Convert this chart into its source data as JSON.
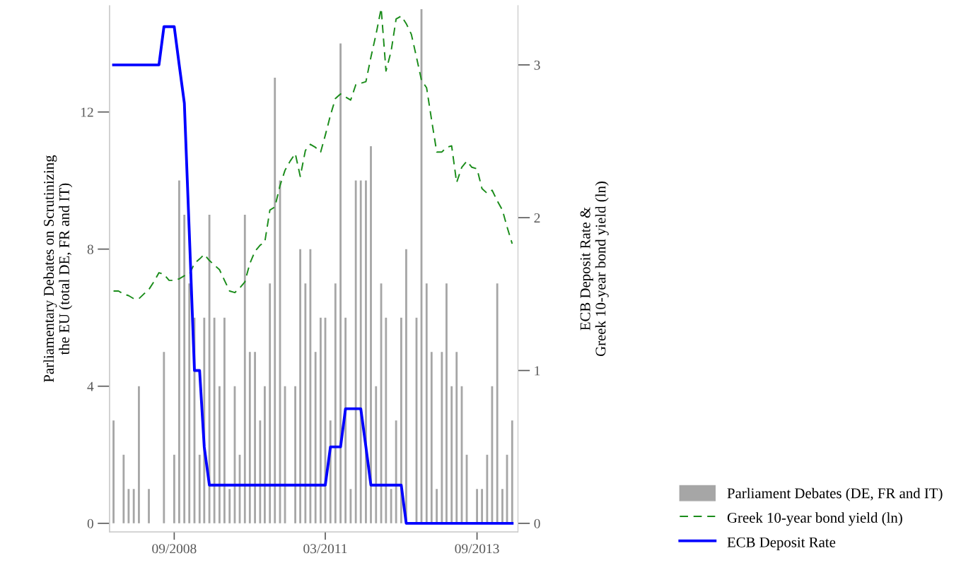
{
  "chart_data": {
    "type": "bar",
    "ylabel": "Parliamentary Debates on Scrutinizing\nthe EU (total DE, FR and IT)",
    "y2label": "ECB Deposit Rate &\nGreek 10-year bond yield (ln)",
    "x": [
      "2007-09",
      "2007-10",
      "2007-11",
      "2007-12",
      "2008-01",
      "2008-02",
      "2008-03",
      "2008-04",
      "2008-05",
      "2008-06",
      "2008-07",
      "2008-08",
      "2008-09",
      "2008-10",
      "2008-11",
      "2008-12",
      "2009-01",
      "2009-02",
      "2009-03",
      "2009-04",
      "2009-05",
      "2009-06",
      "2009-07",
      "2009-08",
      "2009-09",
      "2009-10",
      "2009-11",
      "2009-12",
      "2010-01",
      "2010-02",
      "2010-03",
      "2010-04",
      "2010-05",
      "2010-06",
      "2010-07",
      "2010-08",
      "2010-09",
      "2010-10",
      "2010-11",
      "2010-12",
      "2011-01",
      "2011-02",
      "2011-03",
      "2011-04",
      "2011-05",
      "2011-06",
      "2011-07",
      "2011-08",
      "2011-09",
      "2011-10",
      "2011-11",
      "2011-12",
      "2012-01",
      "2012-02",
      "2012-03",
      "2012-04",
      "2012-05",
      "2012-06",
      "2012-07",
      "2012-08",
      "2012-09",
      "2012-10",
      "2012-11",
      "2012-12",
      "2013-01",
      "2013-02",
      "2013-03",
      "2013-04",
      "2013-05",
      "2013-06",
      "2013-07",
      "2013-08",
      "2013-09",
      "2013-10",
      "2013-11",
      "2013-12",
      "2014-01",
      "2014-02",
      "2014-03",
      "2014-04"
    ],
    "series": [
      {
        "name": "Parliament Debates (DE, FR and IT)",
        "color": "#a6a6a6",
        "values": [
          3,
          0,
          2,
          1,
          1,
          4,
          0,
          1,
          0,
          0,
          5,
          0,
          2,
          10,
          9,
          7,
          6,
          2,
          6,
          9,
          6,
          4,
          6,
          1,
          4,
          2,
          9,
          5,
          5,
          3,
          4,
          7,
          13,
          10,
          4,
          0,
          4,
          8,
          7,
          8,
          5,
          6,
          6,
          3,
          7,
          14,
          6,
          1,
          10,
          10,
          10,
          11,
          4,
          7,
          6,
          1,
          3,
          6,
          8,
          0,
          6,
          15,
          7,
          5,
          1,
          5,
          7,
          4,
          5,
          4,
          2,
          0,
          1,
          1,
          2,
          4,
          7,
          1,
          2,
          3
        ]
      },
      {
        "name": "Greek 10-year bond yield (ln)",
        "type": "line",
        "axis": "y2",
        "line_style": "dashed",
        "color": "#1a8c1a",
        "values": [
          1.52,
          1.52,
          1.5,
          1.49,
          1.47,
          1.47,
          1.5,
          1.53,
          1.58,
          1.64,
          1.63,
          1.59,
          1.59,
          1.6,
          1.62,
          1.63,
          1.7,
          1.73,
          1.76,
          1.72,
          1.69,
          1.66,
          1.59,
          1.52,
          1.51,
          1.54,
          1.58,
          1.7,
          1.78,
          1.82,
          1.84,
          2.05,
          2.07,
          2.21,
          2.31,
          2.37,
          2.42,
          2.27,
          2.44,
          2.48,
          2.46,
          2.43,
          2.54,
          2.67,
          2.78,
          2.81,
          2.79,
          2.77,
          2.87,
          2.88,
          2.89,
          3.05,
          3.2,
          3.37,
          2.96,
          3.09,
          3.3,
          3.32,
          3.27,
          3.2,
          3.05,
          2.9,
          2.85,
          2.64,
          2.43,
          2.43,
          2.46,
          2.47,
          2.23,
          2.33,
          2.37,
          2.33,
          2.32,
          2.19,
          2.16,
          2.18,
          2.11,
          2.05,
          1.94,
          1.83
        ]
      },
      {
        "name": "ECB Deposit Rate",
        "type": "line",
        "axis": "y2",
        "line_style": "solid",
        "color": "#0000ff",
        "values": [
          3,
          3,
          3,
          3,
          3,
          3,
          3,
          3,
          3,
          3,
          3.25,
          3.25,
          3.25,
          3,
          2.75,
          1.9,
          1,
          1,
          0.5,
          0.25,
          0.25,
          0.25,
          0.25,
          0.25,
          0.25,
          0.25,
          0.25,
          0.25,
          0.25,
          0.25,
          0.25,
          0.25,
          0.25,
          0.25,
          0.25,
          0.25,
          0.25,
          0.25,
          0.25,
          0.25,
          0.25,
          0.25,
          0.25,
          0.5,
          0.5,
          0.5,
          0.75,
          0.75,
          0.75,
          0.75,
          0.5,
          0.25,
          0.25,
          0.25,
          0.25,
          0.25,
          0.25,
          0.25,
          0,
          0,
          0,
          0,
          0,
          0,
          0,
          0,
          0,
          0,
          0,
          0,
          0,
          0,
          0,
          0,
          0,
          0,
          0,
          0,
          0,
          0
        ]
      }
    ],
    "xticks": [
      {
        "value": "2008-09",
        "label": "09/2008"
      },
      {
        "value": "2011-03",
        "label": "03/2011"
      },
      {
        "value": "2013-09",
        "label": "09/2013"
      }
    ],
    "xlim": [
      "2007-08-08",
      "2014-05-06"
    ],
    "ylim": [
      -0.25,
      15.1
    ],
    "yticks": [
      0,
      4,
      8,
      12
    ],
    "y2lim": [
      -0.056,
      3.387
    ],
    "y2ticks": [
      0,
      1,
      2,
      3
    ],
    "grid": false,
    "legend": "bottom right"
  }
}
